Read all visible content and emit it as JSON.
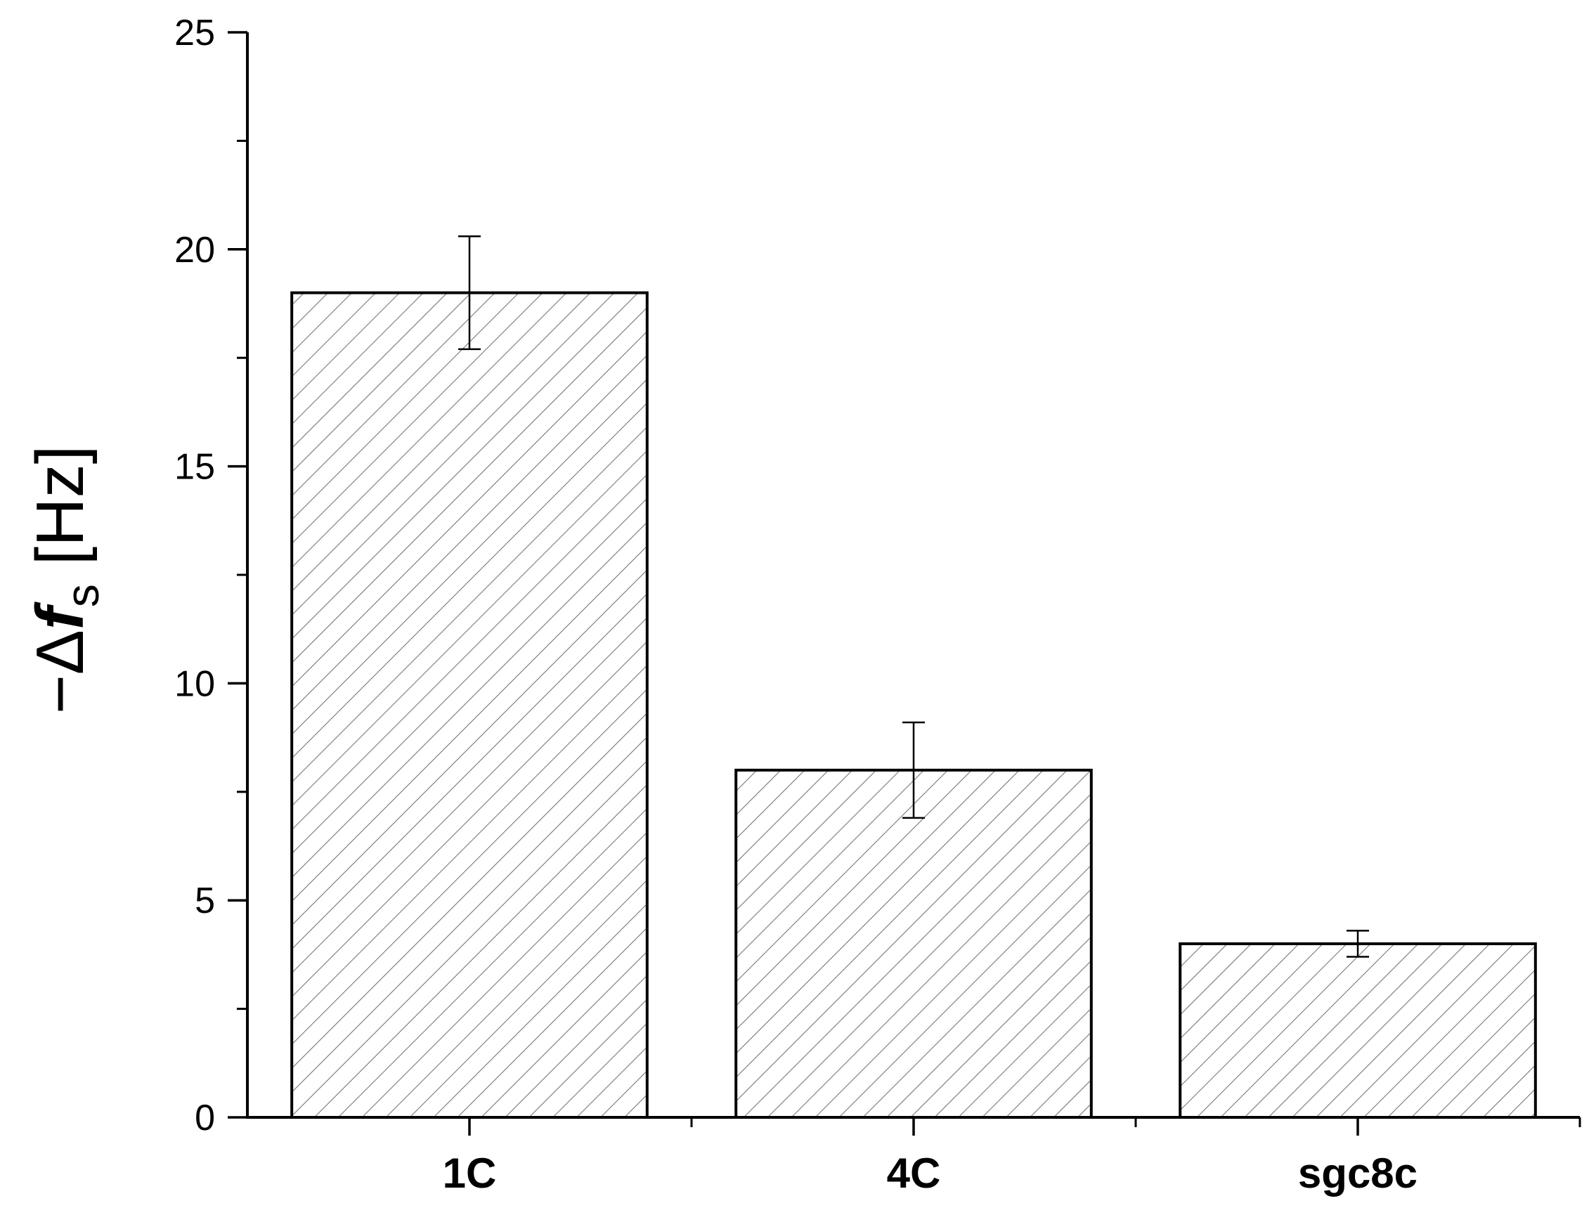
{
  "chart_data": {
    "type": "bar",
    "title": "",
    "xlabel": "",
    "ylabel": {
      "prefix": "−Δ",
      "var": "f",
      "sub": "s",
      "unit": " [Hz]"
    },
    "categories": [
      "1C",
      "4C",
      "sgc8c"
    ],
    "values": [
      19.0,
      8.0,
      4.0
    ],
    "errors": [
      1.3,
      1.1,
      0.3
    ],
    "ylim": [
      0,
      25
    ],
    "yticks": [
      0,
      5,
      10,
      15,
      20,
      25
    ],
    "ytick_labels": [
      "0",
      "5",
      "10",
      "15",
      "20",
      "25"
    ],
    "bar_fill": "hatched (diagonal)",
    "bar_color": "#ffffff",
    "edge_color": "#000000",
    "hatch_color": "#777777",
    "grid": false,
    "legend": "none"
  }
}
